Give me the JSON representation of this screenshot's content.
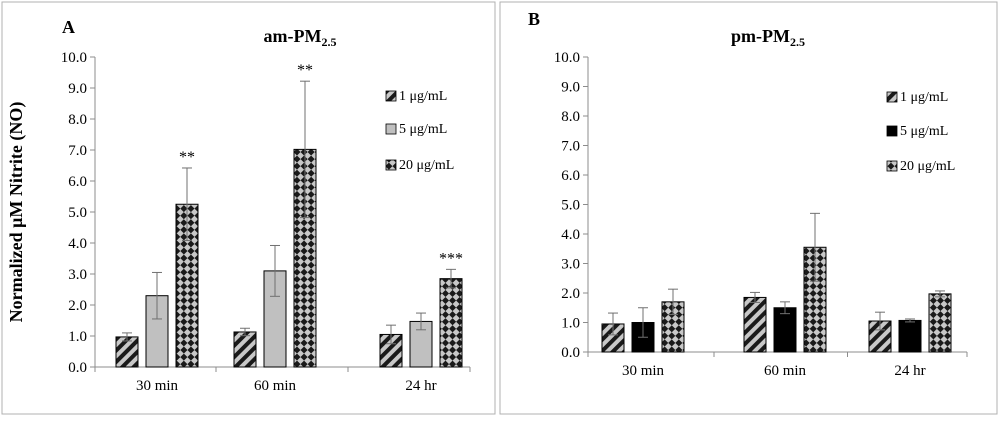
{
  "figure": {
    "ylabel": "Normalized μM Nitrite (NO)"
  },
  "chart_data": [
    {
      "type": "bar",
      "panel_label": "A",
      "title": "am-PM",
      "title_subscript": "2.5",
      "categories": [
        "30 min",
        "60 min",
        "24 hr"
      ],
      "ylabel": "Normalized μM Nitrite (NO)",
      "ylim": [
        0,
        10
      ],
      "yticks": [
        "0.0",
        "1.0",
        "2.0",
        "3.0",
        "4.0",
        "5.0",
        "6.0",
        "7.0",
        "8.0",
        "9.0",
        "10.0"
      ],
      "legend_position": "right",
      "series": [
        {
          "name": "1 μg/mL",
          "pattern": "diag",
          "values": [
            0.97,
            1.13,
            1.05
          ],
          "errors": [
            0.13,
            0.12,
            0.3
          ]
        },
        {
          "name": "5 μg/mL",
          "pattern": "solid-gray",
          "values": [
            2.3,
            3.1,
            1.47
          ],
          "errors": [
            0.75,
            0.82,
            0.27
          ]
        },
        {
          "name": "20 μg/mL",
          "pattern": "checker",
          "values": [
            5.25,
            7.02,
            2.85
          ],
          "errors": [
            1.17,
            2.2,
            0.3
          ]
        }
      ],
      "annotations": [
        {
          "category": "30 min",
          "series": "20 μg/mL",
          "text": "**"
        },
        {
          "category": "60 min",
          "series": "20 μg/mL",
          "text": "**"
        },
        {
          "category": "24 hr",
          "series": "20 μg/mL",
          "text": "***"
        }
      ]
    },
    {
      "type": "bar",
      "panel_label": "B",
      "title": "pm-PM",
      "title_subscript": "2.5",
      "categories": [
        "30 min",
        "60 min",
        "24 hr"
      ],
      "ylim": [
        0,
        10
      ],
      "yticks": [
        "0.0",
        "1.0",
        "2.0",
        "3.0",
        "4.0",
        "5.0",
        "6.0",
        "7.0",
        "8.0",
        "9.0",
        "10.0"
      ],
      "legend_position": "right",
      "series": [
        {
          "name": "1 μg/mL",
          "pattern": "diag",
          "values": [
            0.95,
            1.85,
            1.05
          ],
          "errors": [
            0.37,
            0.17,
            0.3
          ]
        },
        {
          "name": "5 μg/mL",
          "pattern": "solid-black",
          "values": [
            1.0,
            1.5,
            1.07
          ],
          "errors": [
            0.5,
            0.2,
            0.05
          ]
        },
        {
          "name": "20 μg/mL",
          "pattern": "checker",
          "values": [
            1.7,
            3.55,
            1.97
          ],
          "errors": [
            0.43,
            1.15,
            0.1
          ]
        }
      ],
      "annotations": []
    }
  ],
  "colors": {
    "axis": "#8c8c8c",
    "frame": "#b0b0b0",
    "error_bar": "#707070",
    "bar_stroke": "#000000",
    "gray_fill": "#c0c0c0",
    "black_fill": "#000000",
    "pattern_dark": "#1a1a1a",
    "pattern_light": "#c8c8c8"
  }
}
